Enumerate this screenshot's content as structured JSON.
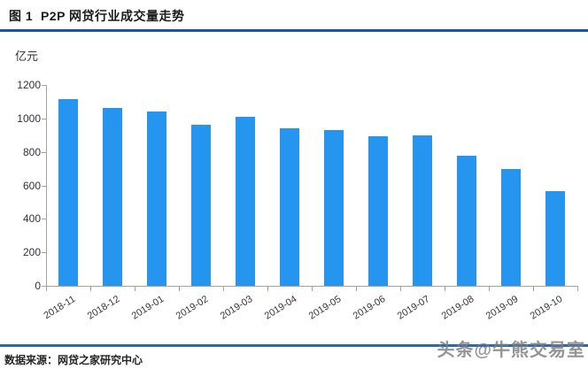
{
  "header": {
    "title": "图 1  P2P 网贷行业成交量走势"
  },
  "chart": {
    "unit_label": "亿元"
  },
  "chart_data": {
    "type": "bar",
    "title": "P2P 网贷行业成交量走势",
    "categories": [
      "2018-11",
      "2018-12",
      "2019-01",
      "2019-02",
      "2019-03",
      "2019-04",
      "2019-05",
      "2019-06",
      "2019-07",
      "2019-08",
      "2019-09",
      "2019-10"
    ],
    "values": [
      1114,
      1061,
      1040,
      960,
      1008,
      940,
      932,
      894,
      900,
      779,
      700,
      568
    ],
    "xlabel": "",
    "ylabel": "亿元",
    "ylim": [
      0,
      1200
    ],
    "yticks": [
      0,
      200,
      400,
      600,
      800,
      1000,
      1200
    ],
    "grid": false,
    "legend": "none",
    "bar_color": "#2595ef"
  },
  "footer": {
    "source": "数据来源：网贷之家研究中心",
    "watermark": "头条@牛熊交易室"
  },
  "colors": {
    "bar": "#2595ef",
    "header_line": "#0f57ac",
    "footer_line": "#2a68b2",
    "axis": "#a8a29a",
    "text": "#333333"
  }
}
